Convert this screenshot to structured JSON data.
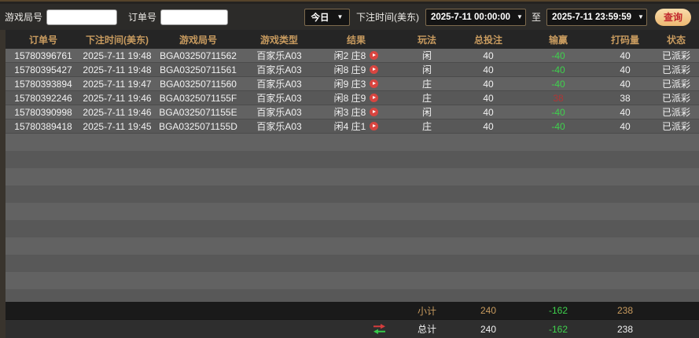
{
  "colors": {
    "accent_gold": "#c89b5f",
    "loss_green": "#3fd24d",
    "win_red": "#b03535",
    "query_button_bg": "#eeb972",
    "query_button_text": "#c1272d"
  },
  "filter_bar": {
    "game_round_label": "游戏局号",
    "game_round_value": "",
    "order_no_label": "订单号",
    "order_no_value": "",
    "period_selected": "今日",
    "bet_time_label": "下注时间(美东)",
    "date_from": "2025-7-11 00:00:00",
    "to_label": "至",
    "date_to": "2025-7-11 23:59:59",
    "query_label": "查询"
  },
  "table": {
    "headers": [
      "订单号",
      "下注时间(美东)",
      "游戏局号",
      "游戏类型",
      "结果",
      "玩法",
      "总投注",
      "输赢",
      "打码量",
      "状态"
    ],
    "rows": [
      {
        "order_no": "15780396761",
        "bet_time": "2025-7-11 19:48",
        "round_no": "BGA03250711562",
        "game_type": "百家乐A03",
        "result": "闲2 庄8",
        "play": "闲",
        "total_bet": "40",
        "win_loss": "-40",
        "win_loss_color": "green",
        "turnover": "40",
        "status": "已派彩"
      },
      {
        "order_no": "15780395427",
        "bet_time": "2025-7-11 19:48",
        "round_no": "BGA03250711561",
        "game_type": "百家乐A03",
        "result": "闲8 庄9",
        "play": "闲",
        "total_bet": "40",
        "win_loss": "-40",
        "win_loss_color": "green",
        "turnover": "40",
        "status": "已派彩"
      },
      {
        "order_no": "15780393894",
        "bet_time": "2025-7-11 19:47",
        "round_no": "BGA03250711560",
        "game_type": "百家乐A03",
        "result": "闲9 庄3",
        "play": "庄",
        "total_bet": "40",
        "win_loss": "-40",
        "win_loss_color": "green",
        "turnover": "40",
        "status": "已派彩"
      },
      {
        "order_no": "15780392246",
        "bet_time": "2025-7-11 19:46",
        "round_no": "BGA0325071155F",
        "game_type": "百家乐A03",
        "result": "闲8 庄9",
        "play": "庄",
        "total_bet": "40",
        "win_loss": "38",
        "win_loss_color": "red",
        "turnover": "38",
        "status": "已派彩"
      },
      {
        "order_no": "15780390998",
        "bet_time": "2025-7-11 19:46",
        "round_no": "BGA0325071155E",
        "game_type": "百家乐A03",
        "result": "闲3 庄8",
        "play": "闲",
        "total_bet": "40",
        "win_loss": "-40",
        "win_loss_color": "green",
        "turnover": "40",
        "status": "已派彩"
      },
      {
        "order_no": "15780389418",
        "bet_time": "2025-7-11 19:45",
        "round_no": "BGA0325071155D",
        "game_type": "百家乐A03",
        "result": "闲4 庄1",
        "play": "庄",
        "total_bet": "40",
        "win_loss": "-40",
        "win_loss_color": "green",
        "turnover": "40",
        "status": "已派彩"
      }
    ]
  },
  "summary": {
    "subtotal": {
      "label": "小计",
      "total_bet": "240",
      "win_loss": "-162",
      "win_loss_color": "green",
      "turnover": "238"
    },
    "total": {
      "label": "总计",
      "total_bet": "240",
      "win_loss": "-162",
      "win_loss_color": "green",
      "turnover": "238"
    }
  }
}
